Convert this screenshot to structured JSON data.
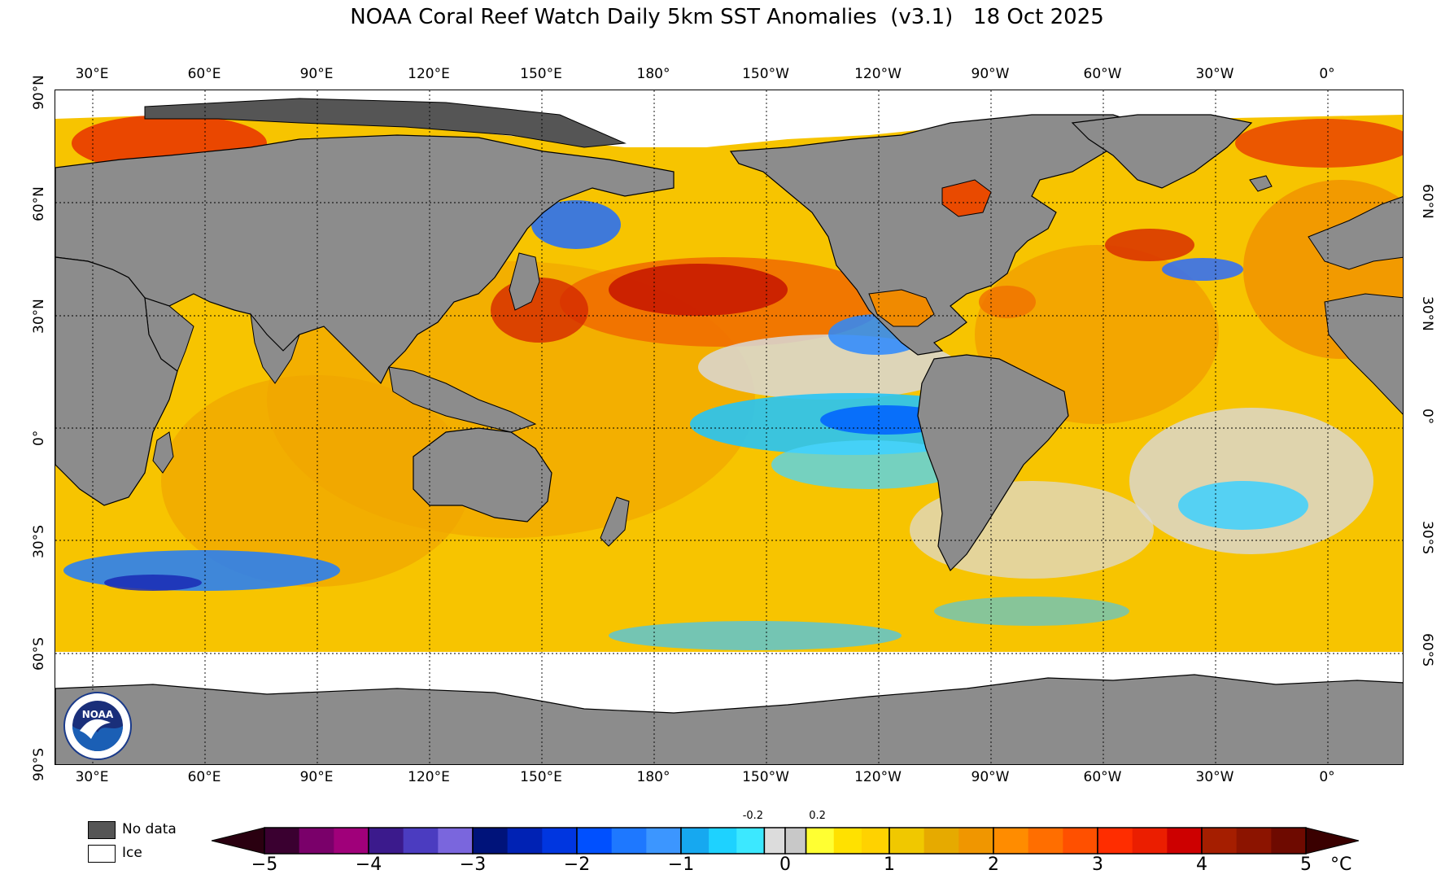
{
  "title": "NOAA Coral Reef Watch Daily 5km SST Anomalies  (v3.1)   18 Oct 2025",
  "map": {
    "top_lon_labels": [
      "30°E",
      "60°E",
      "90°E",
      "120°E",
      "150°E",
      "180°",
      "150°W",
      "120°W",
      "90°W",
      "60°W",
      "30°W",
      "0°"
    ],
    "bottom_lon_labels": [
      "30°E",
      "60°E",
      "90°E",
      "120°E",
      "150°E",
      "180°",
      "150°W",
      "120°W",
      "90°W",
      "60°W",
      "30°W",
      "0°"
    ],
    "left_lat_labels": [
      "90°N",
      "60°N",
      "30°N",
      "0°",
      "30°S",
      "60°S",
      "90°S"
    ],
    "right_lat_labels": [
      "60°N",
      "30°N",
      "0°",
      "30°S",
      "60°S"
    ],
    "colors": {
      "land": "#8c8c8c",
      "no_data": "#555555",
      "ice": "#ffffff",
      "ocean_base": "#f7c400"
    }
  },
  "legend": {
    "no_data_label": "No data",
    "ice_label": "Ice"
  },
  "colorbar": {
    "tick_labels": [
      "−5",
      "−4",
      "−3",
      "−2",
      "−1",
      "0",
      "1",
      "2",
      "3",
      "4",
      "5"
    ],
    "small_labels": [
      "-0.2",
      "0.2"
    ],
    "unit": "°C",
    "min": -5,
    "max": 5,
    "segments": [
      {
        "from": -5,
        "to": -4,
        "colors": [
          "#3a0030",
          "#7a006a",
          "#a0007a"
        ]
      },
      {
        "from": -4,
        "to": -3,
        "colors": [
          "#3b1a8c",
          "#4b3cc0",
          "#7a66dd"
        ]
      },
      {
        "from": -3,
        "to": -2,
        "colors": [
          "#00137a",
          "#0022b4",
          "#0036e0"
        ]
      },
      {
        "from": -2,
        "to": -1,
        "colors": [
          "#0050ff",
          "#1e78ff",
          "#3c96ff"
        ]
      },
      {
        "from": -1,
        "to": -0.2,
        "colors": [
          "#16a8f0",
          "#1ed2ff",
          "#3ce8ff"
        ]
      },
      {
        "from": -0.2,
        "to": 0,
        "colors": [
          "#dcdcdc"
        ]
      },
      {
        "from": 0,
        "to": 0.2,
        "colors": [
          "#c8c8c8"
        ]
      },
      {
        "from": 0.2,
        "to": 1,
        "colors": [
          "#ffff32",
          "#ffe100",
          "#ffd200"
        ]
      },
      {
        "from": 1,
        "to": 2,
        "colors": [
          "#f0c800",
          "#e6aa00",
          "#f09600"
        ]
      },
      {
        "from": 2,
        "to": 3,
        "colors": [
          "#ff8c00",
          "#ff6e00",
          "#ff5000"
        ]
      },
      {
        "from": 3,
        "to": 4,
        "colors": [
          "#ff2d00",
          "#eb1e00",
          "#cd0000"
        ]
      },
      {
        "from": 4,
        "to": 5,
        "colors": [
          "#a51e00",
          "#8c1400",
          "#6e0a00"
        ]
      }
    ],
    "left_arrow_color": "#2a0010",
    "right_arrow_color": "#3a0000"
  }
}
